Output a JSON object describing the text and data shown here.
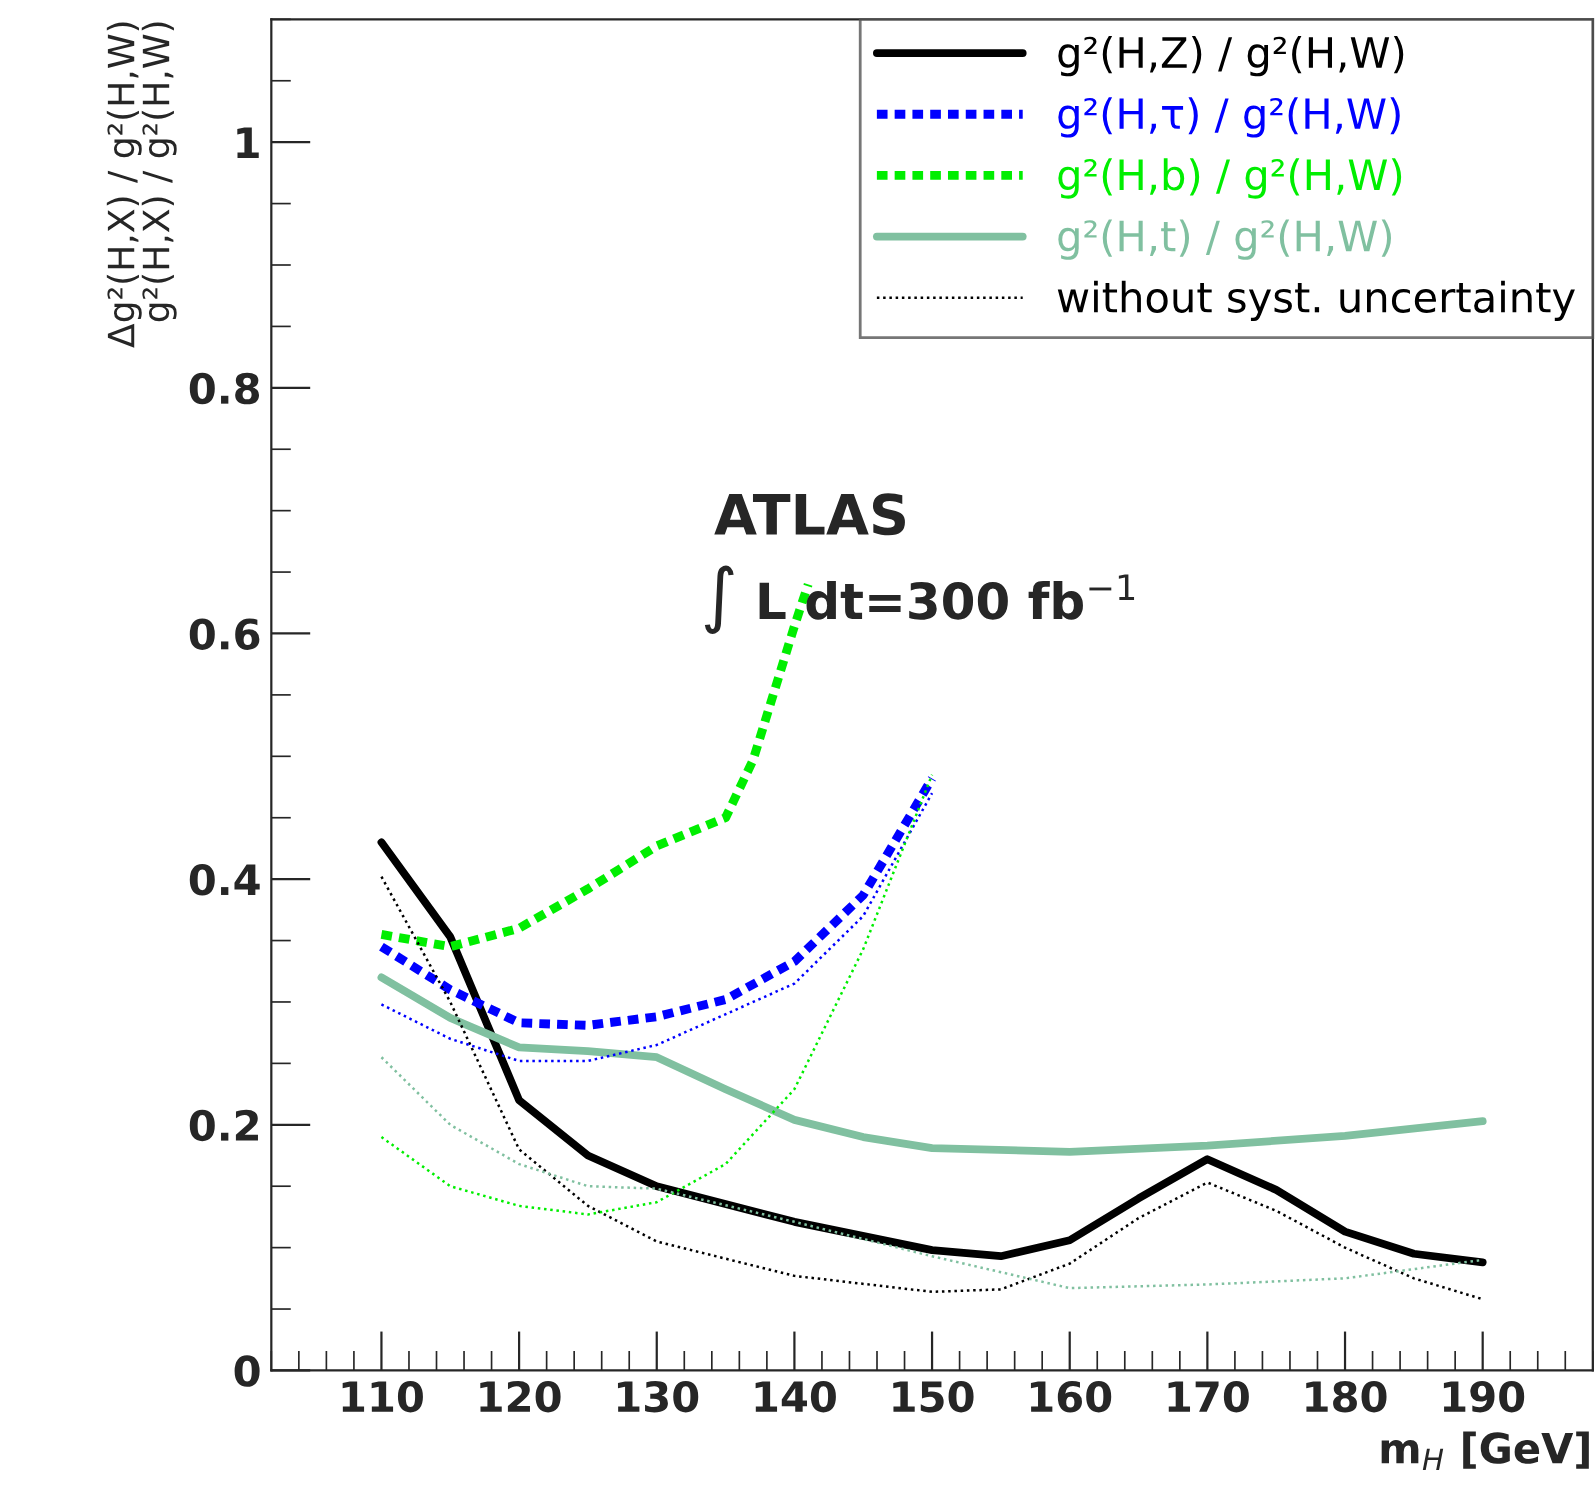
{
  "chart_data": {
    "type": "line",
    "xlabel": "m$_{H}$ [GeV]",
    "ylabel": "Δg²(H,X) / g²(H,W)\ng²(H,X) / g²(H,W)",
    "xlim": [
      102,
      198
    ],
    "ylim": [
      0,
      1.1
    ],
    "xticks": [
      110,
      120,
      130,
      140,
      150,
      160,
      170,
      180,
      190
    ],
    "yticks": [
      0,
      0.2,
      0.4,
      0.6,
      0.8,
      1
    ],
    "grid": false,
    "legend": "top right",
    "marker": "none",
    "annotations": [
      "ATLAS",
      "∫ L dt=300 fb$^{−1}$"
    ],
    "series": [
      {
        "name": "g²(H,Z) / g²(H,W)",
        "color": "#000000",
        "line_style": "solid",
        "x": [
          110,
          115,
          120,
          125,
          130,
          140,
          150,
          155,
          160,
          165,
          170,
          175,
          180,
          185,
          190
        ],
        "values": [
          0.43,
          0.353,
          0.22,
          0.175,
          0.15,
          0.121,
          0.098,
          0.093,
          0.106,
          0.14,
          0.172,
          0.147,
          0.113,
          0.095,
          0.088
        ]
      },
      {
        "name": "g²(H,τ) / g²(H,W)",
        "color": "#0000ff",
        "line_style": "dashed",
        "x": [
          110,
          115,
          120,
          125,
          130,
          135,
          140,
          145,
          150
        ],
        "values": [
          0.345,
          0.31,
          0.283,
          0.281,
          0.288,
          0.302,
          0.333,
          0.387,
          0.482
        ]
      },
      {
        "name": "g²(H,b) / g²(H,W)",
        "color": "#00ee00",
        "line_style": "dashed",
        "x": [
          110,
          115,
          120,
          125,
          130,
          135,
          137,
          140,
          141
        ],
        "values": [
          0.355,
          0.345,
          0.36,
          0.392,
          0.427,
          0.45,
          0.497,
          0.606,
          0.64
        ]
      },
      {
        "name": "g²(H,t) / g²(H,W)",
        "color": "#80c0a0",
        "line_style": "solid",
        "x": [
          110,
          115,
          120,
          125,
          130,
          135,
          140,
          145,
          150,
          160,
          170,
          180,
          190
        ],
        "values": [
          0.32,
          0.287,
          0.263,
          0.26,
          0.255,
          0.229,
          0.204,
          0.19,
          0.181,
          0.178,
          0.183,
          0.191,
          0.203
        ]
      },
      {
        "name": "without syst. uncertainty",
        "color": "#000000",
        "line_style": "dotted",
        "x": [
          110,
          115,
          120,
          125,
          130,
          140,
          150,
          155,
          160,
          165,
          170,
          175,
          180,
          185,
          190
        ],
        "values": [
          0.402,
          0.3,
          0.18,
          0.134,
          0.105,
          0.077,
          0.064,
          0.066,
          0.087,
          0.124,
          0.153,
          0.13,
          0.1,
          0.075,
          0.058
        ]
      },
      {
        "color": "#0000ff",
        "line_style": "dotted",
        "x": [
          110,
          115,
          120,
          125,
          130,
          140,
          145,
          150
        ],
        "values": [
          0.298,
          0.27,
          0.252,
          0.252,
          0.265,
          0.315,
          0.37,
          0.47
        ]
      },
      {
        "color": "#00ee00",
        "line_style": "dotted",
        "x": [
          110,
          115,
          120,
          125,
          130,
          135,
          140,
          145,
          150
        ],
        "values": [
          0.19,
          0.15,
          0.134,
          0.127,
          0.137,
          0.168,
          0.229,
          0.343,
          0.485
        ]
      },
      {
        "color": "#80c0a0",
        "line_style": "dotted",
        "x": [
          110,
          115,
          120,
          125,
          130,
          140,
          150,
          160,
          170,
          180,
          190
        ],
        "values": [
          0.255,
          0.2,
          0.168,
          0.15,
          0.148,
          0.121,
          0.093,
          0.067,
          0.07,
          0.075,
          0.09
        ]
      }
    ]
  }
}
